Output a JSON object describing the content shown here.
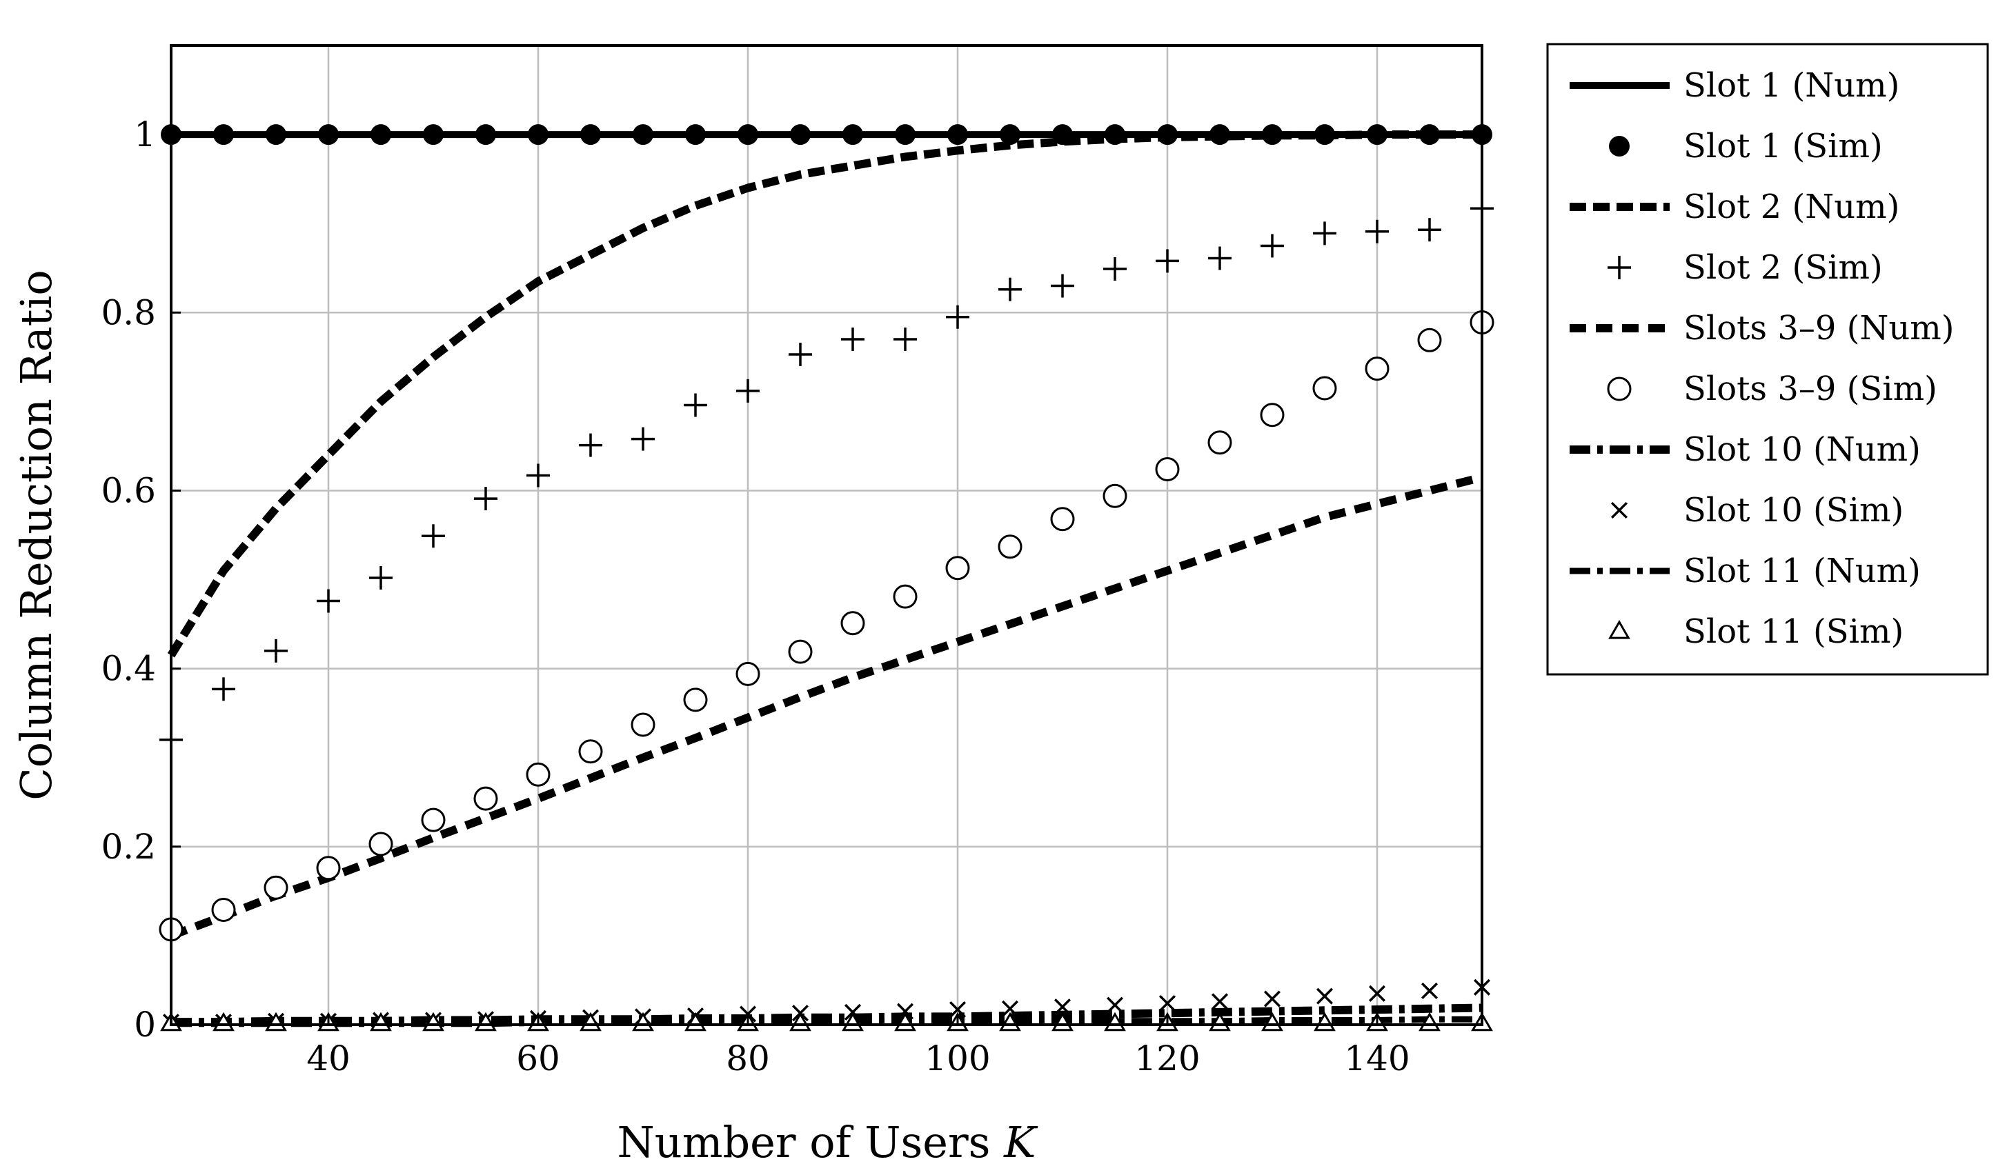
{
  "chart_data": {
    "type": "line",
    "title": "",
    "xlabel": "Number of Users",
    "xlabel_var": "K",
    "ylabel": "Column Reduction Ratio",
    "xlim": [
      25,
      150
    ],
    "ylim": [
      0,
      1.1
    ],
    "grid": true,
    "legend_position": "outside-right",
    "xticks": [
      40,
      60,
      80,
      100,
      120,
      140
    ],
    "yticks": [
      0,
      0.2,
      0.4,
      0.6,
      0.8,
      1
    ],
    "ytick_labels": [
      "0",
      "0.2",
      "0.4",
      "0.6",
      "0.8",
      "1"
    ],
    "x": [
      25,
      30,
      35,
      40,
      45,
      50,
      55,
      60,
      65,
      70,
      75,
      80,
      85,
      90,
      95,
      100,
      105,
      110,
      115,
      120,
      125,
      130,
      135,
      140,
      145,
      150
    ],
    "series": [
      {
        "name": "Slot 1 (Num)",
        "kind": "line",
        "style": "solid",
        "values": [
          1,
          1,
          1,
          1,
          1,
          1,
          1,
          1,
          1,
          1,
          1,
          1,
          1,
          1,
          1,
          1,
          1,
          1,
          1,
          1,
          1,
          1,
          1,
          1,
          1,
          1
        ]
      },
      {
        "name": "Slot 1 (Sim)",
        "kind": "marker",
        "marker": "filled-circle",
        "values": [
          1,
          1,
          1,
          1,
          1,
          1,
          1,
          1,
          1,
          1,
          1,
          1,
          1,
          1,
          1,
          1,
          1,
          1,
          1,
          1,
          1,
          1,
          1,
          1,
          1,
          1
        ]
      },
      {
        "name": "Slot 2 (Num)",
        "kind": "line",
        "style": "dashed",
        "values": [
          0.415,
          0.51,
          0.58,
          0.64,
          0.7,
          0.75,
          0.795,
          0.835,
          0.865,
          0.895,
          0.92,
          0.94,
          0.955,
          0.965,
          0.975,
          0.982,
          0.988,
          0.992,
          0.995,
          0.997,
          0.998,
          0.999,
          0.999,
          1.0,
          1.0,
          1.0
        ]
      },
      {
        "name": "Slot 2 (Sim)",
        "kind": "marker",
        "marker": "plus",
        "values": [
          0.32,
          0.377,
          0.42,
          0.476,
          0.502,
          0.549,
          0.591,
          0.617,
          0.651,
          0.658,
          0.696,
          0.712,
          0.753,
          0.77,
          0.77,
          0.795,
          0.826,
          0.83,
          0.849,
          0.858,
          0.861,
          0.875,
          0.889,
          0.891,
          0.893,
          0.917
        ]
      },
      {
        "name": "Slots 3–9 (Num)",
        "kind": "line",
        "style": "dashed-thick",
        "values": [
          0.1,
          0.122,
          0.145,
          0.165,
          0.187,
          0.21,
          0.232,
          0.254,
          0.277,
          0.3,
          0.322,
          0.345,
          0.368,
          0.39,
          0.41,
          0.43,
          0.45,
          0.47,
          0.49,
          0.51,
          0.53,
          0.55,
          0.57,
          0.585,
          0.6,
          0.615
        ]
      },
      {
        "name": "Slots 3–9 (Sim)",
        "kind": "marker",
        "marker": "open-circle",
        "values": [
          0.107,
          0.129,
          0.154,
          0.176,
          0.203,
          0.23,
          0.254,
          0.281,
          0.307,
          0.337,
          0.365,
          0.394,
          0.419,
          0.451,
          0.481,
          0.513,
          0.537,
          0.568,
          0.594,
          0.624,
          0.654,
          0.685,
          0.715,
          0.737,
          0.769,
          0.789
        ]
      },
      {
        "name": "Slot 10 (Num)",
        "kind": "line",
        "style": "dash-dot",
        "values": [
          0.003,
          0.003,
          0.004,
          0.004,
          0.004,
          0.005,
          0.005,
          0.006,
          0.006,
          0.006,
          0.007,
          0.007,
          0.008,
          0.008,
          0.009,
          0.009,
          0.01,
          0.011,
          0.012,
          0.013,
          0.014,
          0.015,
          0.016,
          0.017,
          0.018,
          0.019
        ]
      },
      {
        "name": "Slot 10 (Sim)",
        "kind": "marker",
        "marker": "cross",
        "values": [
          0.003,
          0.003,
          0.004,
          0.004,
          0.005,
          0.005,
          0.006,
          0.007,
          0.008,
          0.009,
          0.01,
          0.012,
          0.013,
          0.014,
          0.015,
          0.017,
          0.018,
          0.02,
          0.022,
          0.024,
          0.026,
          0.029,
          0.032,
          0.035,
          0.038,
          0.042
        ]
      },
      {
        "name": "Slot 11 (Num)",
        "kind": "line",
        "style": "dash-dot-thin",
        "values": [
          0.001,
          0.001,
          0.001,
          0.001,
          0.001,
          0.001,
          0.001,
          0.002,
          0.002,
          0.002,
          0.002,
          0.002,
          0.003,
          0.003,
          0.003,
          0.003,
          0.003,
          0.004,
          0.004,
          0.004,
          0.004,
          0.005,
          0.005,
          0.005,
          0.006,
          0.006
        ]
      },
      {
        "name": "Slot 11 (Sim)",
        "kind": "marker",
        "marker": "open-triangle",
        "values": [
          0.001,
          0.001,
          0.001,
          0.001,
          0.001,
          0.001,
          0.001,
          0.001,
          0.001,
          0.001,
          0.001,
          0.001,
          0.001,
          0.001,
          0.001,
          0.001,
          0.001,
          0.001,
          0.001,
          0.001,
          0.001,
          0.001,
          0.001,
          0.001,
          0.001,
          0.001
        ]
      }
    ]
  }
}
